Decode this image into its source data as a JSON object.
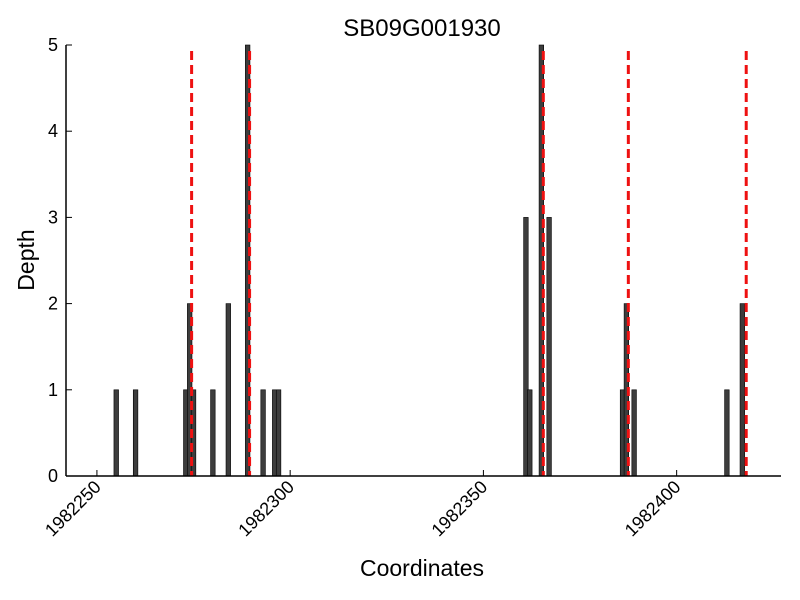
{
  "chart_data": {
    "type": "bar",
    "title": "SB09G001930",
    "xlabel": "Coordinates",
    "ylabel": "Depth",
    "xlim": [
      1982242,
      1982427
    ],
    "ylim": [
      0,
      5
    ],
    "xticks": [
      1982250,
      1982300,
      1982350,
      1982400
    ],
    "xtick_labels": [
      "1982250",
      "1982300",
      "1982350",
      "1982400"
    ],
    "yticks": [
      0,
      1,
      2,
      3,
      4,
      5
    ],
    "ytick_labels": [
      "0",
      "1",
      "2",
      "3",
      "4",
      "5"
    ],
    "grid": false,
    "bar_color": "#3d3d3d",
    "bars": [
      {
        "x": 1982255,
        "value": 1
      },
      {
        "x": 1982260,
        "value": 1
      },
      {
        "x": 1982273,
        "value": 1
      },
      {
        "x": 1982274,
        "value": 2
      },
      {
        "x": 1982275,
        "value": 1
      },
      {
        "x": 1982280,
        "value": 1
      },
      {
        "x": 1982284,
        "value": 2
      },
      {
        "x": 1982289,
        "value": 5
      },
      {
        "x": 1982293,
        "value": 1
      },
      {
        "x": 1982296,
        "value": 1
      },
      {
        "x": 1982297,
        "value": 1
      },
      {
        "x": 1982361,
        "value": 3
      },
      {
        "x": 1982362,
        "value": 1
      },
      {
        "x": 1982365,
        "value": 5
      },
      {
        "x": 1982367,
        "value": 3
      },
      {
        "x": 1982386,
        "value": 1
      },
      {
        "x": 1982387,
        "value": 2
      },
      {
        "x": 1982389,
        "value": 1
      },
      {
        "x": 1982413,
        "value": 1
      },
      {
        "x": 1982417,
        "value": 2
      }
    ],
    "reference_lines": {
      "color": "#ee1111",
      "style": "dashed",
      "x": [
        1982274.5,
        1982289.5,
        1982365.5,
        1982387.5,
        1982418
      ]
    }
  }
}
